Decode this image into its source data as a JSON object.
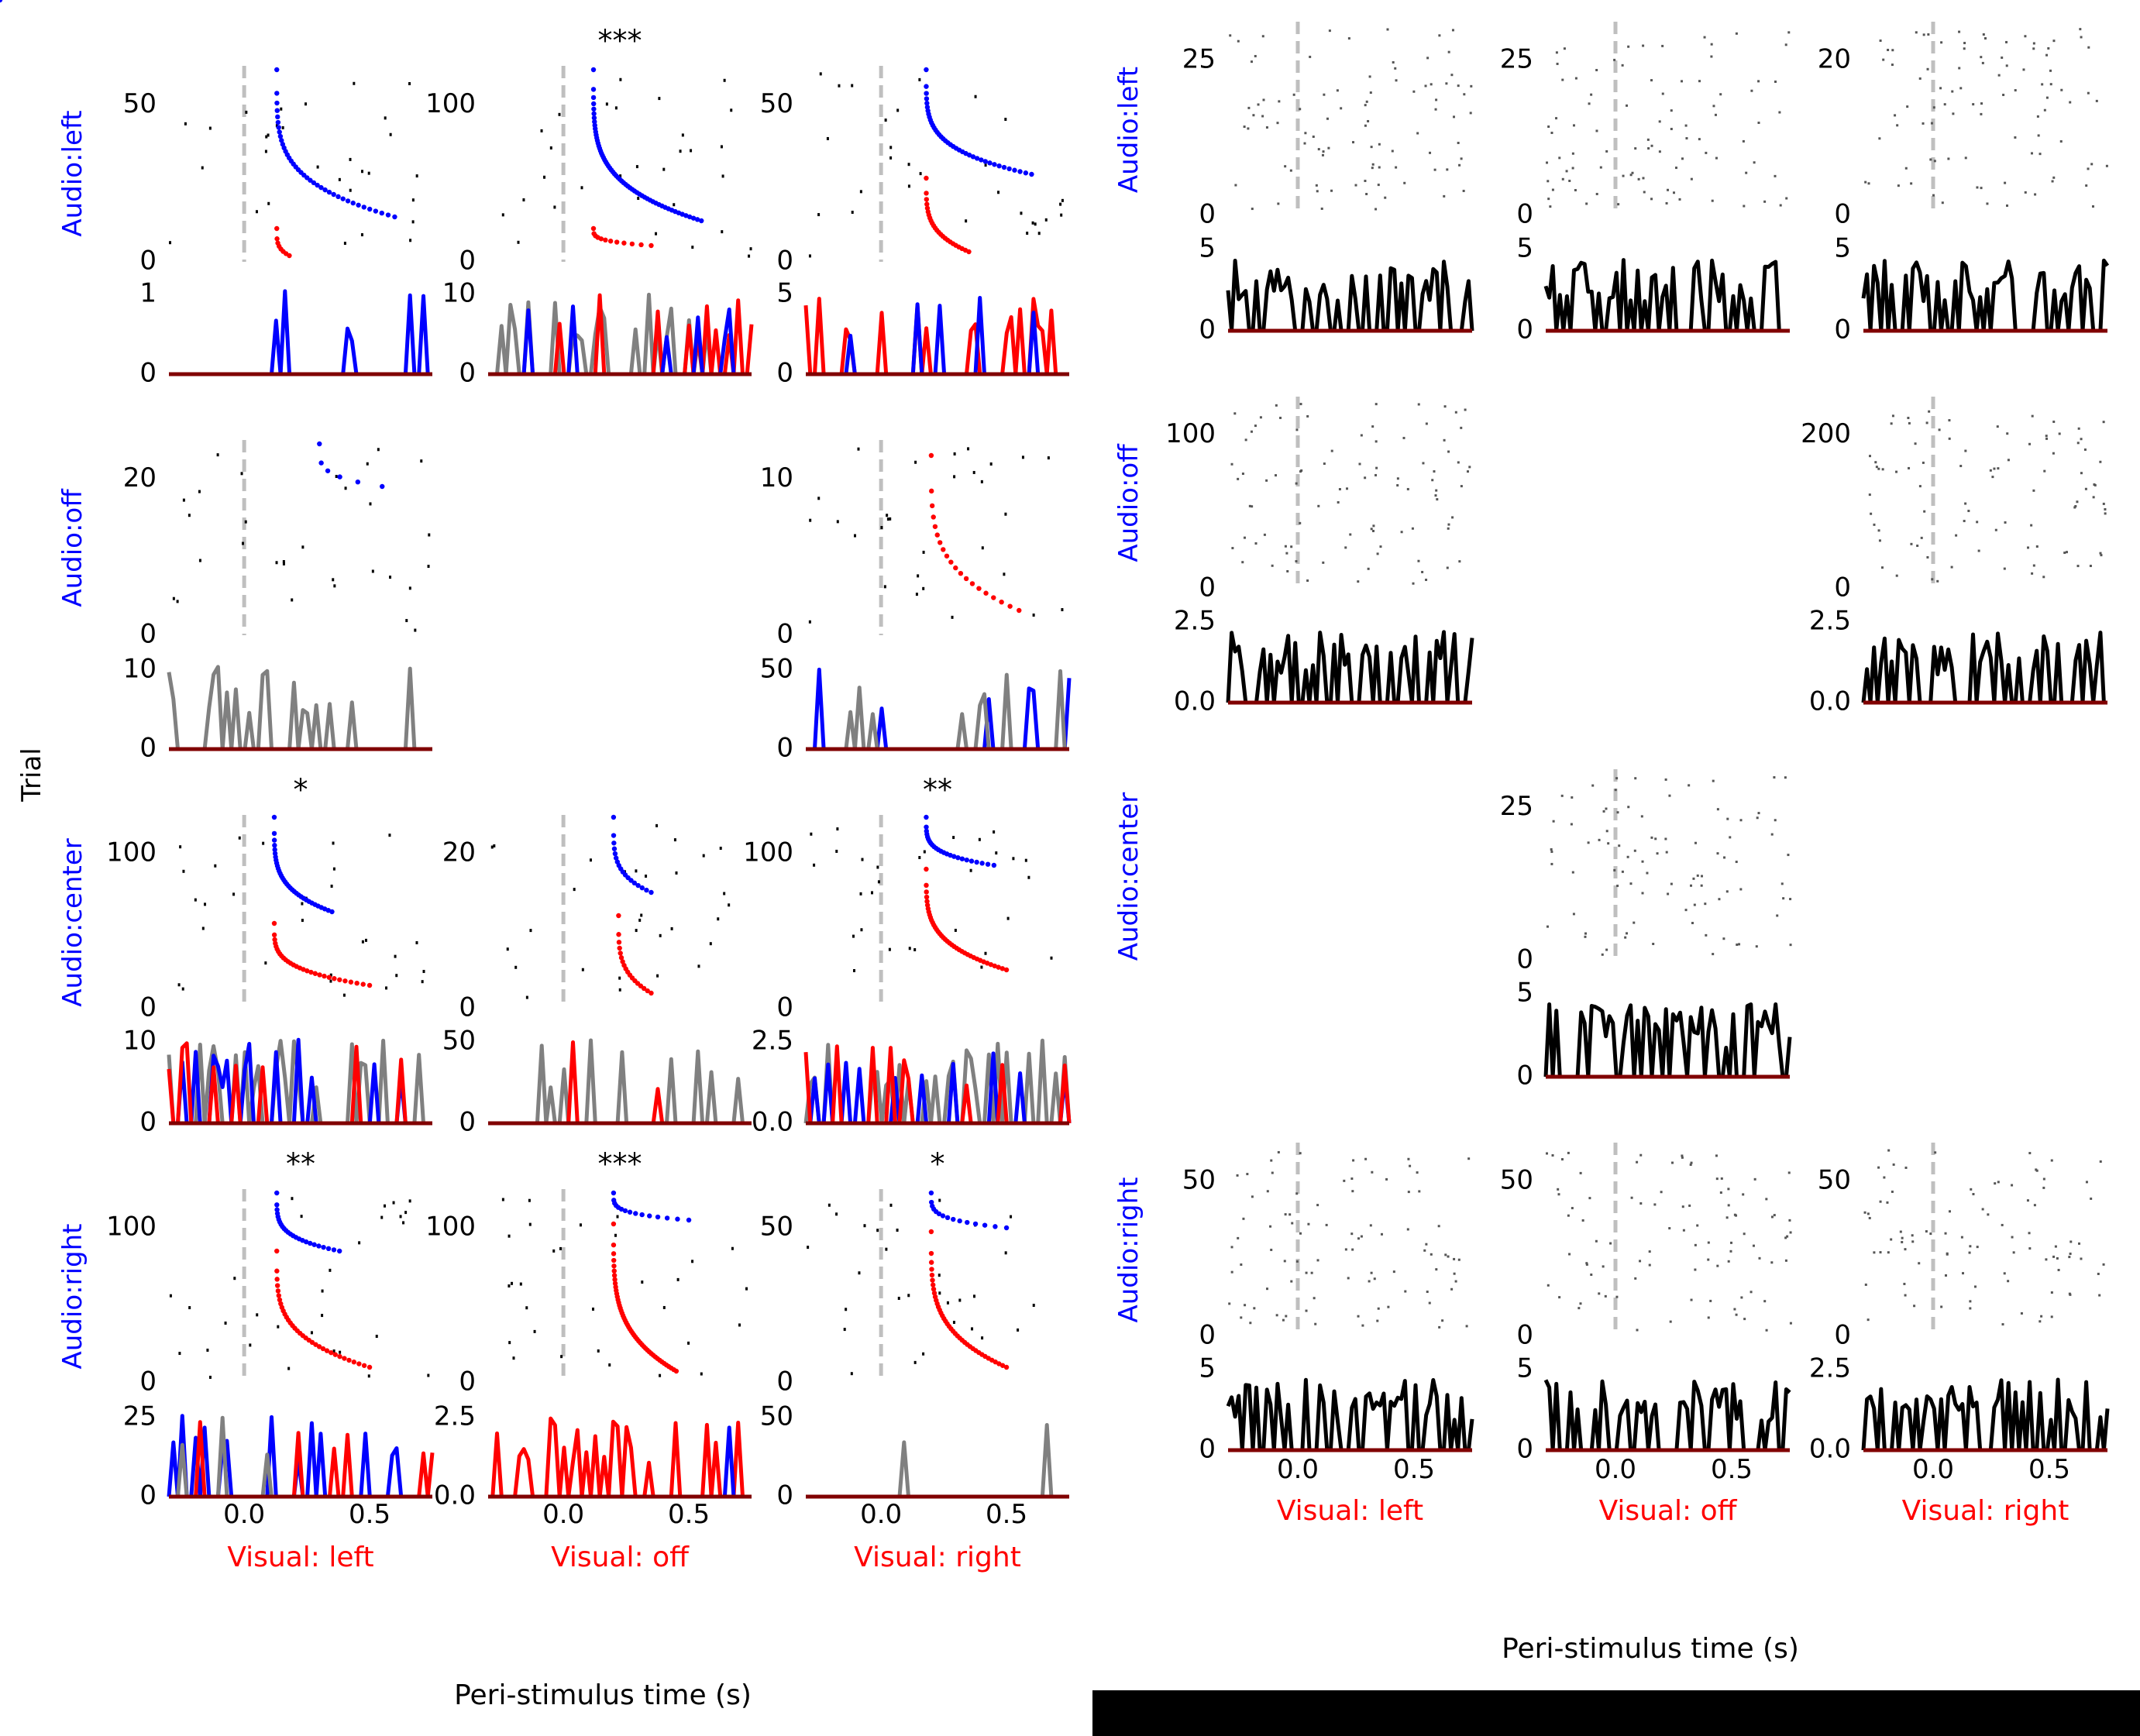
{
  "figure": {
    "left_panel": {
      "row_labels": [
        "Audio:left",
        "Audio:off",
        "Audio:center",
        "Audio:right"
      ],
      "col_labels": [
        "Visual: left",
        "Visual: off",
        "Visual: right"
      ],
      "shared_ylabel": "Trial",
      "shared_xlabel": "Peri-stimulus time (s)",
      "xticks": [
        "0.0",
        "0.5"
      ]
    },
    "right_panel": {
      "row_labels": [
        "Audio:left",
        "Audio:off",
        "Audio:center",
        "Audio:right"
      ],
      "col_labels": [
        "Visual: left",
        "Visual: off",
        "Visual: right"
      ],
      "shared_xlabel": "Peri-stimulus time (s)",
      "xticks": [
        "0.0",
        "0.5"
      ]
    },
    "colors": {
      "row_label": "#0000ff",
      "col_label": "#ff0000",
      "blue_series": "#0000ff",
      "red_series": "#ff0000",
      "grey_series": "#808080",
      "dark_red_series": "#800000",
      "stim_line": "#bfbfbf",
      "psth": "#000000"
    }
  },
  "chart_data": [
    {
      "panel": "left",
      "type": "scatter",
      "description_of_layout": "4x3 grid of raster (top) + PSTH (bottom) pairs; x axis peri-stimulus time",
      "xlim": [
        -0.3,
        0.75
      ],
      "cells": [
        {
          "row": "Audio:left",
          "col": "Visual: left",
          "star": "",
          "raster_yticks": [
            "0",
            "50"
          ],
          "psth_yticks": [
            "0",
            "1"
          ]
        },
        {
          "row": "Audio:left",
          "col": "Visual: off",
          "star": "***",
          "raster_yticks": [
            "0",
            "100"
          ],
          "psth_yticks": [
            "0",
            "10"
          ]
        },
        {
          "row": "Audio:left",
          "col": "Visual: right",
          "star": "",
          "raster_yticks": [
            "0",
            "50"
          ],
          "psth_yticks": [
            "0",
            "5"
          ]
        },
        {
          "row": "Audio:off",
          "col": "Visual: left",
          "star": "",
          "raster_yticks": [
            "0",
            "20"
          ],
          "psth_yticks": [
            "0",
            "10"
          ]
        },
        {
          "row": "Audio:off",
          "col": "Visual: right",
          "star": "",
          "raster_yticks": [
            "0",
            "10"
          ],
          "psth_yticks": [
            "0",
            "50"
          ]
        },
        {
          "row": "Audio:center",
          "col": "Visual: left",
          "star": "*",
          "raster_yticks": [
            "0",
            "100"
          ],
          "psth_yticks": [
            "0",
            "10"
          ]
        },
        {
          "row": "Audio:center",
          "col": "Visual: off",
          "star": "",
          "raster_yticks": [
            "0",
            "20"
          ],
          "psth_yticks": [
            "0",
            "50"
          ]
        },
        {
          "row": "Audio:center",
          "col": "Visual: right",
          "star": "**",
          "raster_yticks": [
            "0",
            "100"
          ],
          "psth_yticks": [
            "0.0",
            "2.5"
          ]
        },
        {
          "row": "Audio:right",
          "col": "Visual: left",
          "star": "**",
          "raster_yticks": [
            "0",
            "100"
          ],
          "psth_yticks": [
            "0",
            "25"
          ]
        },
        {
          "row": "Audio:right",
          "col": "Visual: off",
          "star": "***",
          "raster_yticks": [
            "0",
            "100"
          ],
          "psth_yticks": [
            "0.0",
            "2.5"
          ]
        },
        {
          "row": "Audio:right",
          "col": "Visual: right",
          "star": "*",
          "raster_yticks": [
            "0",
            "50"
          ],
          "psth_yticks": [
            "0",
            "50"
          ]
        }
      ]
    },
    {
      "panel": "right",
      "type": "scatter",
      "xlim": [
        -0.3,
        0.75
      ],
      "cells": [
        {
          "row": "Audio:left",
          "col": "Visual: left",
          "raster_yticks": [
            "0",
            "25"
          ],
          "psth_yticks": [
            "0",
            "5"
          ]
        },
        {
          "row": "Audio:left",
          "col": "Visual: off",
          "raster_yticks": [
            "0",
            "25"
          ],
          "psth_yticks": [
            "0",
            "5"
          ]
        },
        {
          "row": "Audio:left",
          "col": "Visual: right",
          "raster_yticks": [
            "0",
            "20"
          ],
          "psth_yticks": [
            "0",
            "5"
          ]
        },
        {
          "row": "Audio:off",
          "col": "Visual: left",
          "raster_yticks": [
            "0",
            "100"
          ],
          "psth_yticks": [
            "0.0",
            "2.5"
          ]
        },
        {
          "row": "Audio:off",
          "col": "Visual: right",
          "raster_yticks": [
            "0",
            "200"
          ],
          "psth_yticks": [
            "0.0",
            "2.5"
          ]
        },
        {
          "row": "Audio:center",
          "col": "Visual: off",
          "raster_yticks": [
            "0",
            "25"
          ],
          "psth_yticks": [
            "0",
            "5"
          ]
        },
        {
          "row": "Audio:right",
          "col": "Visual: left",
          "raster_yticks": [
            "0",
            "50"
          ],
          "psth_yticks": [
            "0",
            "5"
          ]
        },
        {
          "row": "Audio:right",
          "col": "Visual: off",
          "raster_yticks": [
            "0",
            "50"
          ],
          "psth_yticks": [
            "0",
            "5"
          ]
        },
        {
          "row": "Audio:right",
          "col": "Visual: right",
          "raster_yticks": [
            "0",
            "50"
          ],
          "psth_yticks": [
            "0.0",
            "2.5"
          ]
        }
      ]
    }
  ]
}
